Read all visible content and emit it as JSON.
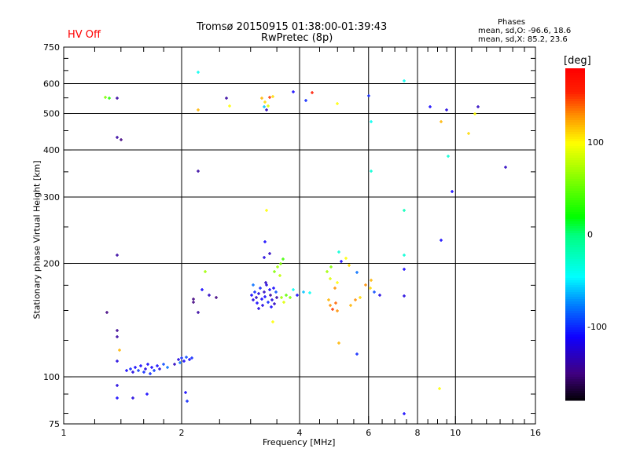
{
  "header": {
    "status": "HV Off",
    "title": "Tromsø 20150915 01:38:00-01:39:43",
    "subtitle": "RwPretec (8p)",
    "stats_title": "Phases",
    "stats_o": "mean, sd,O: -96.6, 18.6",
    "stats_x": "mean, sd,X:  85.2, 23.6"
  },
  "colors": {
    "status": "#ff0000",
    "grid": "#000000"
  },
  "chart_data": {
    "type": "scatter",
    "title": "Tromsø 20150915 01:38:00-01:39:43",
    "xlabel": "Frequency [MHz]",
    "ylabel": "Stationary phase Virtual Height [km]",
    "xscale": "log",
    "yscale": "log",
    "xlim": [
      1,
      16
    ],
    "ylim": [
      75,
      750
    ],
    "xticks": [
      1,
      2,
      4,
      6,
      8,
      10,
      16
    ],
    "xtick_labels": [
      "1",
      "2",
      "4",
      "6",
      "8",
      "10",
      "16"
    ],
    "yticks": [
      75,
      100,
      200,
      300,
      400,
      500,
      600,
      750
    ],
    "ytick_labels": [
      "75",
      "100",
      "200",
      "300",
      "400",
      "500",
      "600",
      "750"
    ],
    "grid": true,
    "colorbar": {
      "label": "[deg]",
      "range": [
        -180,
        180
      ],
      "ticks": [
        100,
        0,
        -100
      ],
      "tick_labels": [
        "100",
        "0",
        "-100"
      ]
    },
    "point_fields": [
      "frequency_mhz",
      "height_km",
      "phase_deg"
    ],
    "points": [
      [
        1.28,
        553,
        60
      ],
      [
        1.31,
        549,
        30
      ],
      [
        1.37,
        549,
        -140
      ],
      [
        1.37,
        432,
        -140
      ],
      [
        1.4,
        425,
        -150
      ],
      [
        1.37,
        210,
        -140
      ],
      [
        1.29,
        148,
        -150
      ],
      [
        1.37,
        133,
        -145
      ],
      [
        1.37,
        128,
        -140
      ],
      [
        1.39,
        118,
        120
      ],
      [
        1.37,
        110,
        -120
      ],
      [
        1.37,
        95,
        -120
      ],
      [
        1.37,
        88,
        -110
      ],
      [
        1.5,
        88,
        -120
      ],
      [
        1.63,
        90,
        -110
      ],
      [
        1.45,
        104,
        -110
      ],
      [
        1.48,
        105,
        -100
      ],
      [
        1.5,
        103,
        -120
      ],
      [
        1.52,
        106,
        -110
      ],
      [
        1.55,
        104,
        -95
      ],
      [
        1.57,
        107,
        -110
      ],
      [
        1.6,
        103,
        -100
      ],
      [
        1.62,
        105,
        -120
      ],
      [
        1.64,
        108,
        -110
      ],
      [
        1.66,
        102,
        -100
      ],
      [
        1.68,
        106,
        -110
      ],
      [
        1.7,
        104,
        -95
      ],
      [
        1.73,
        107,
        -110
      ],
      [
        1.76,
        105,
        -120
      ],
      [
        1.8,
        108,
        -90
      ],
      [
        1.84,
        106,
        -80
      ],
      [
        1.92,
        108,
        -130
      ],
      [
        1.96,
        111,
        -120
      ],
      [
        2.0,
        112,
        -100
      ],
      [
        2.03,
        110,
        -110
      ],
      [
        2.06,
        113,
        -90
      ],
      [
        2.09,
        111,
        -110
      ],
      [
        2.12,
        112,
        -100
      ],
      [
        1.98,
        109,
        -80
      ],
      [
        2.05,
        91,
        -110
      ],
      [
        2.07,
        86,
        -100
      ],
      [
        2.2,
        643,
        -40
      ],
      [
        2.2,
        511,
        120
      ],
      [
        2.2,
        352,
        -140
      ],
      [
        2.14,
        161,
        -150
      ],
      [
        2.14,
        158,
        -150
      ],
      [
        2.2,
        148,
        -140
      ],
      [
        2.3,
        190,
        70
      ],
      [
        2.26,
        170,
        -110
      ],
      [
        2.35,
        165,
        -130
      ],
      [
        2.45,
        162,
        -150
      ],
      [
        2.6,
        549,
        -140
      ],
      [
        2.65,
        523,
        100
      ],
      [
        3.02,
        165,
        -110
      ],
      [
        3.05,
        160,
        -120
      ],
      [
        3.08,
        168,
        -100
      ],
      [
        3.1,
        162,
        -130
      ],
      [
        3.12,
        157,
        -110
      ],
      [
        3.15,
        166,
        -120
      ],
      [
        3.17,
        172,
        -100
      ],
      [
        3.2,
        161,
        -110
      ],
      [
        3.22,
        155,
        -120
      ],
      [
        3.25,
        168,
        -130
      ],
      [
        3.27,
        163,
        -110
      ],
      [
        3.3,
        175,
        -120
      ],
      [
        3.32,
        158,
        -100
      ],
      [
        3.35,
        170,
        -110
      ],
      [
        3.37,
        165,
        -140
      ],
      [
        3.4,
        160,
        -120
      ],
      [
        3.43,
        172,
        -110
      ],
      [
        3.45,
        156,
        -130
      ],
      [
        3.48,
        168,
        -90
      ],
      [
        3.05,
        175,
        -80
      ],
      [
        3.15,
        152,
        -120
      ],
      [
        3.28,
        178,
        -130
      ],
      [
        3.38,
        153,
        -110
      ],
      [
        3.5,
        162,
        -140
      ],
      [
        3.3,
        276,
        100
      ],
      [
        3.27,
        228,
        -110
      ],
      [
        3.25,
        207,
        -120
      ],
      [
        3.35,
        212,
        -130
      ],
      [
        3.45,
        190,
        60
      ],
      [
        3.52,
        196,
        70
      ],
      [
        3.58,
        200,
        60
      ],
      [
        3.63,
        205,
        40
      ],
      [
        3.56,
        186,
        80
      ],
      [
        3.42,
        140,
        100
      ],
      [
        3.6,
        162,
        70
      ],
      [
        3.7,
        165,
        50
      ],
      [
        3.78,
        162,
        60
      ],
      [
        3.65,
        158,
        90
      ],
      [
        3.2,
        549,
        120
      ],
      [
        3.27,
        536,
        110
      ],
      [
        3.32,
        523,
        90
      ],
      [
        3.25,
        520,
        -60
      ],
      [
        3.3,
        511,
        -130
      ],
      [
        3.36,
        552,
        150
      ],
      [
        3.42,
        555,
        110
      ],
      [
        3.85,
        570,
        -110
      ],
      [
        4.15,
        540,
        -100
      ],
      [
        4.3,
        568,
        160
      ],
      [
        3.85,
        170,
        -40
      ],
      [
        3.95,
        165,
        -110
      ],
      [
        4.1,
        168,
        -60
      ],
      [
        4.25,
        167,
        -40
      ],
      [
        4.7,
        190,
        70
      ],
      [
        4.78,
        182,
        90
      ],
      [
        4.82,
        196,
        60
      ],
      [
        4.92,
        172,
        130
      ],
      [
        5.0,
        178,
        100
      ],
      [
        5.05,
        214,
        -30
      ],
      [
        5.12,
        202,
        -110
      ],
      [
        5.25,
        206,
        100
      ],
      [
        5.35,
        198,
        110
      ],
      [
        4.75,
        160,
        120
      ],
      [
        4.8,
        155,
        130
      ],
      [
        4.85,
        151,
        150
      ],
      [
        4.95,
        157,
        140
      ],
      [
        5.0,
        150,
        130
      ],
      [
        5.4,
        155,
        120
      ],
      [
        5.55,
        160,
        130
      ],
      [
        5.7,
        162,
        110
      ],
      [
        5.9,
        175,
        130
      ],
      [
        6.1,
        180,
        120
      ],
      [
        6.2,
        168,
        -90
      ],
      [
        5.6,
        189,
        -80
      ],
      [
        5.05,
        123,
        120
      ],
      [
        5.0,
        530,
        100
      ],
      [
        5.6,
        115,
        -100
      ],
      [
        6.0,
        556,
        -100
      ],
      [
        6.08,
        476,
        -40
      ],
      [
        6.1,
        352,
        -30
      ],
      [
        6.05,
        172,
        110
      ],
      [
        6.4,
        165,
        -120
      ],
      [
        7.4,
        610,
        -40
      ],
      [
        7.4,
        276,
        -20
      ],
      [
        7.4,
        210,
        -30
      ],
      [
        7.4,
        193,
        -110
      ],
      [
        7.4,
        164,
        -120
      ],
      [
        7.4,
        80,
        -110
      ],
      [
        8.6,
        520,
        -110
      ],
      [
        9.2,
        475,
        120
      ],
      [
        9.2,
        230,
        -110
      ],
      [
        9.1,
        93,
        100
      ],
      [
        9.5,
        512,
        -120
      ],
      [
        9.6,
        385,
        -30
      ],
      [
        9.8,
        310,
        -110
      ],
      [
        10.8,
        442,
        110
      ],
      [
        11.2,
        500,
        100
      ],
      [
        11.4,
        520,
        -130
      ],
      [
        13.4,
        360,
        -130
      ]
    ]
  }
}
